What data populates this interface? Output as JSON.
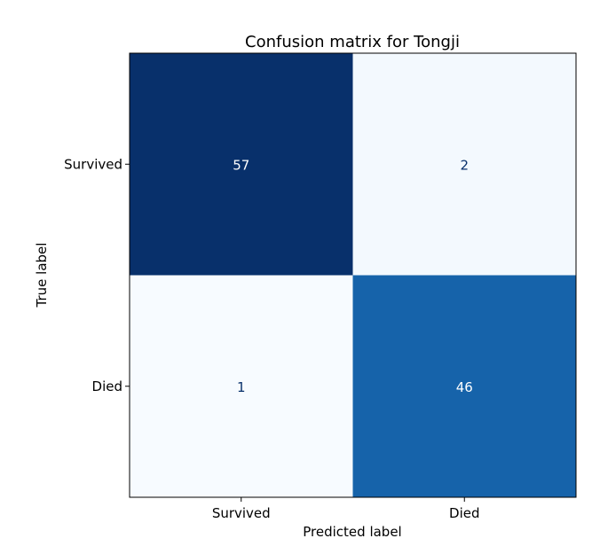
{
  "chart_data": {
    "type": "heatmap",
    "title": "Confusion matrix for Tongji",
    "xlabel": "Predicted label",
    "ylabel": "True label",
    "x_categories": [
      "Survived",
      "Died"
    ],
    "y_categories": [
      "Survived",
      "Died"
    ],
    "values": [
      [
        57,
        2
      ],
      [
        1,
        46
      ]
    ],
    "colormap": "Blues",
    "color_range": [
      1,
      57
    ],
    "colors": {
      "low": "#f7fbff",
      "high": "#08306b",
      "text_dark": "#08306b",
      "text_light": "#ffffff"
    },
    "grid": false,
    "legend": "none"
  }
}
